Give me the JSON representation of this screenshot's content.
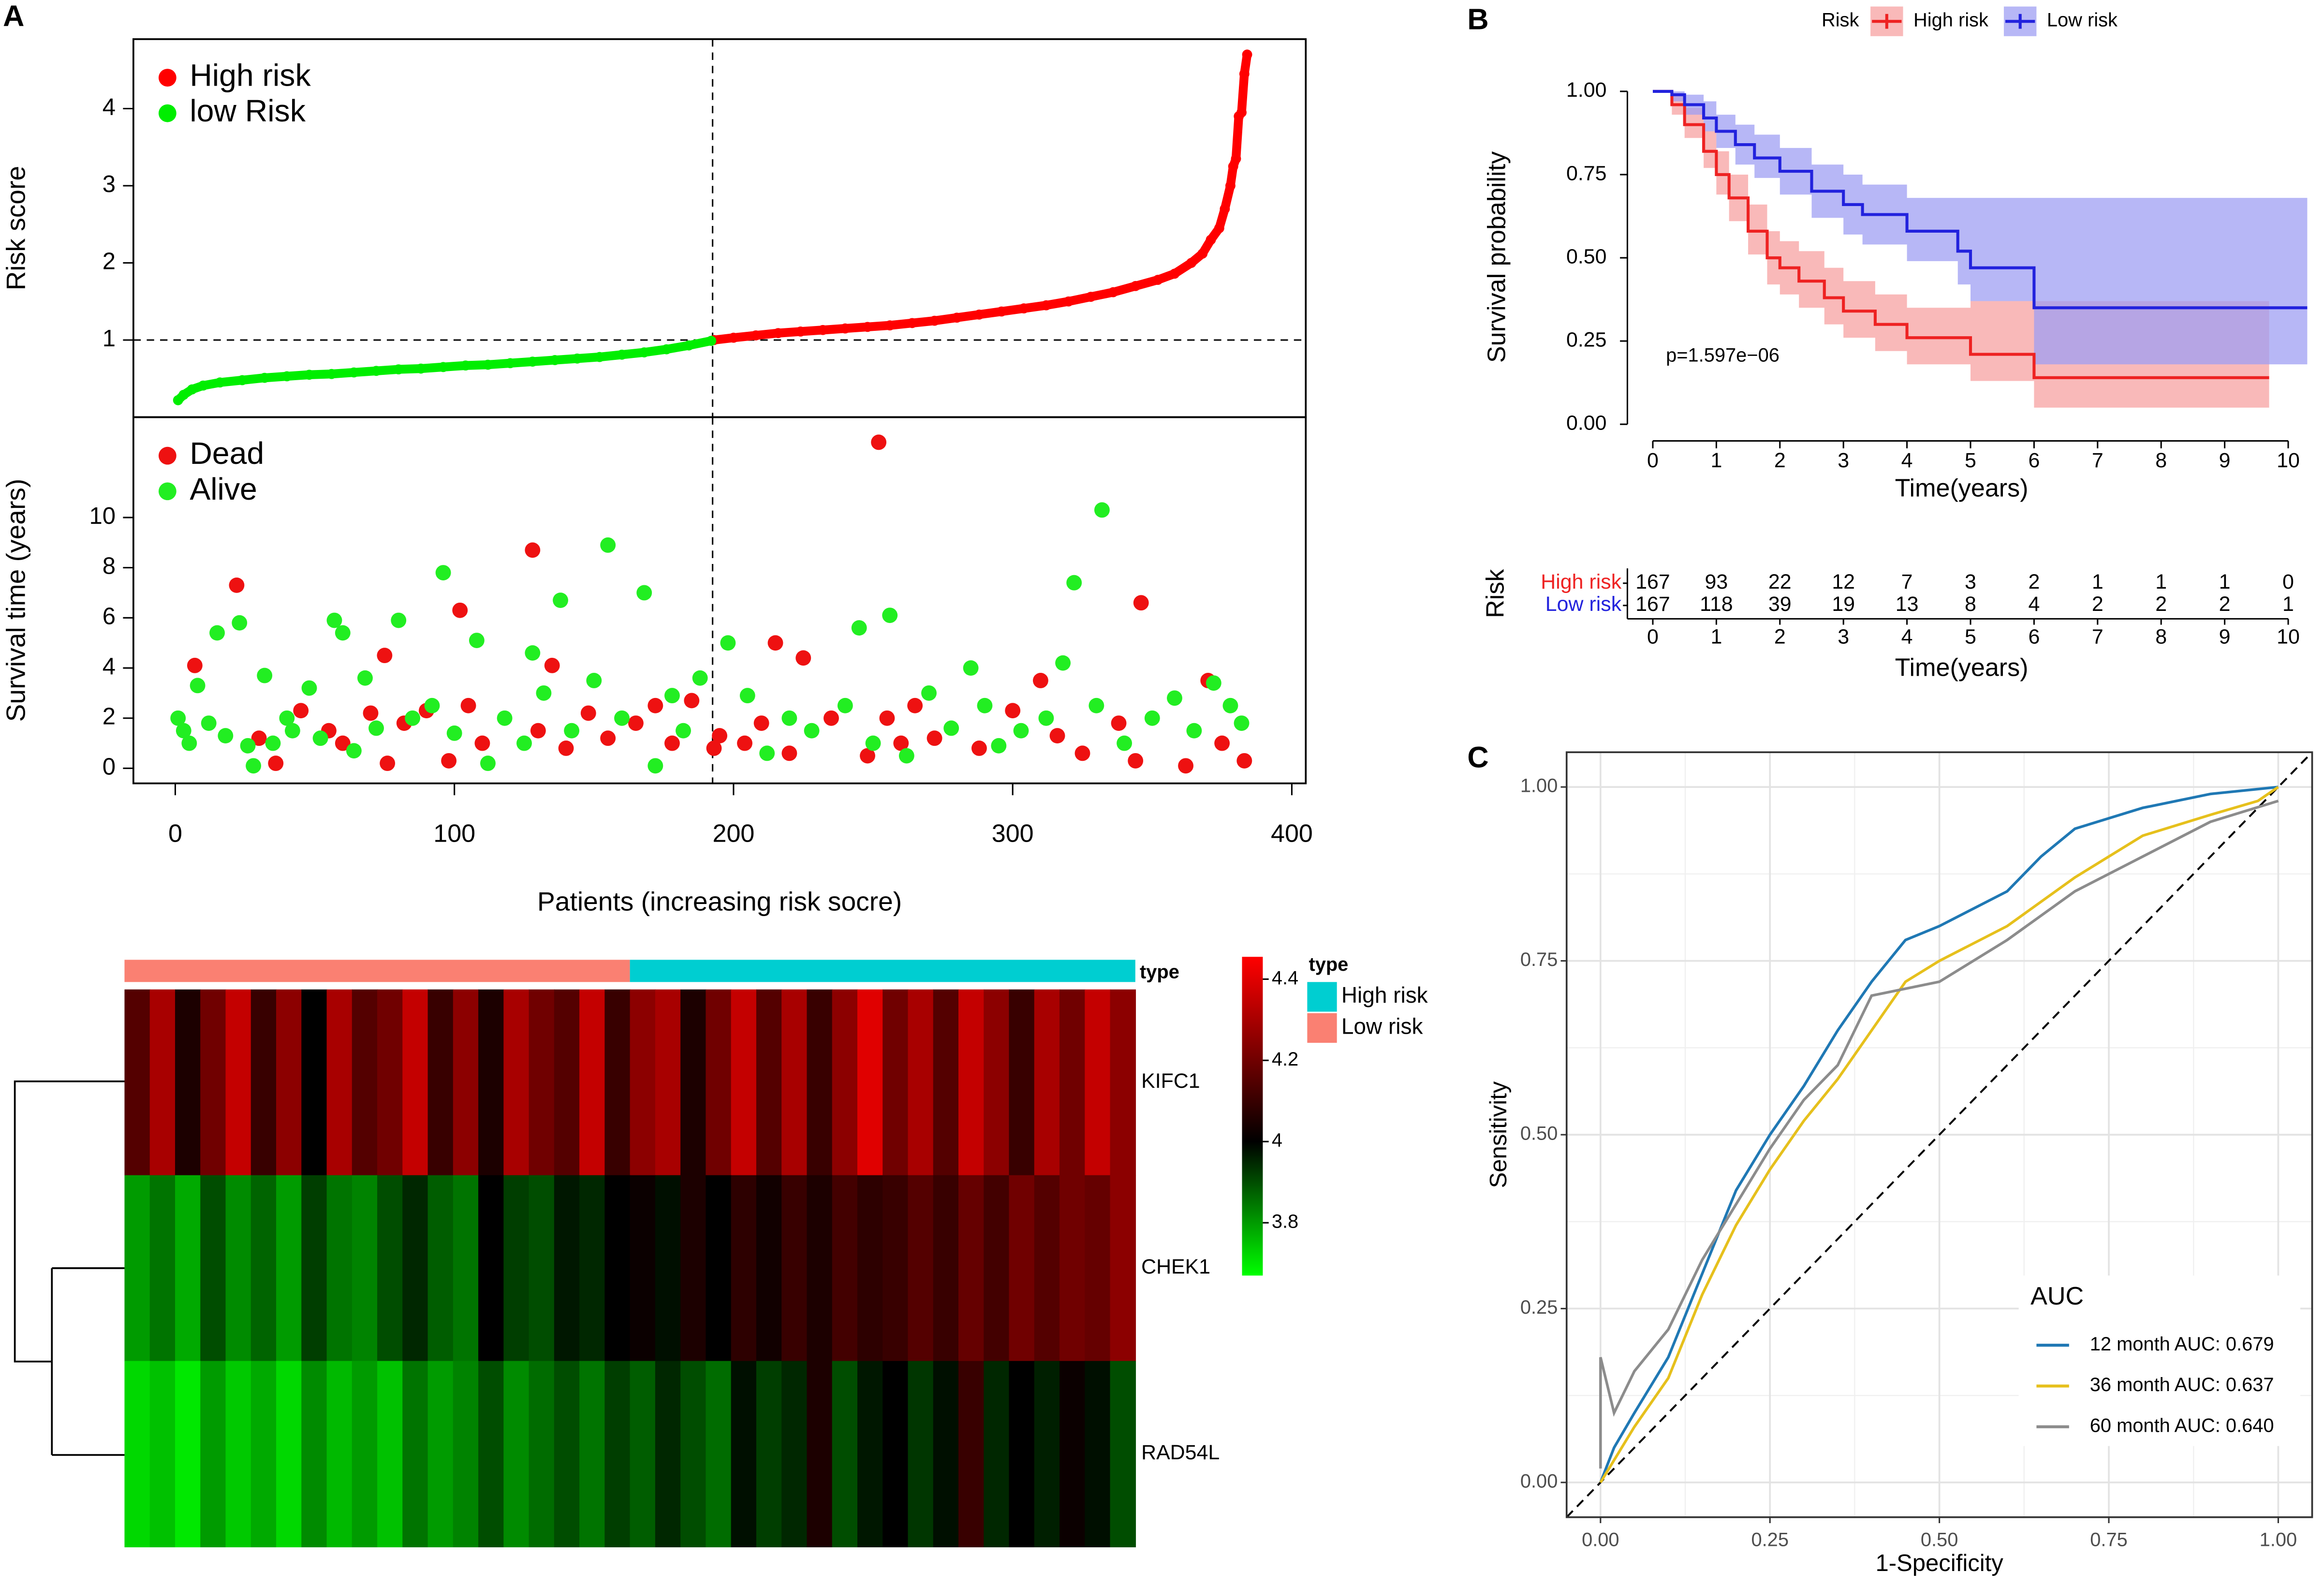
{
  "chart_data": [
    {
      "type": "scatter",
      "label": "A",
      "ylabel": "Risk score",
      "xlim": [
        -15,
        405
      ],
      "ylim": [
        0,
        4.9
      ],
      "yticks": [
        1,
        2,
        3,
        4
      ],
      "cutoff_x": 192.5,
      "cutoff_y": 1,
      "series": [
        {
          "name": "High risk",
          "color": "#ff0000",
          "x": [
            193,
            200,
            208,
            216,
            224,
            232,
            240,
            248,
            256,
            264,
            272,
            280,
            288,
            296,
            304,
            312,
            320,
            328,
            336,
            344,
            352,
            358,
            364,
            368,
            371,
            374,
            376,
            378,
            379,
            380,
            381,
            382,
            383,
            384
          ],
          "values": [
            1.0,
            1.03,
            1.06,
            1.09,
            1.11,
            1.13,
            1.15,
            1.17,
            1.19,
            1.22,
            1.25,
            1.29,
            1.33,
            1.37,
            1.41,
            1.45,
            1.5,
            1.56,
            1.62,
            1.7,
            1.78,
            1.86,
            2.0,
            2.12,
            2.3,
            2.45,
            2.7,
            3.0,
            3.25,
            3.35,
            3.9,
            3.95,
            4.45,
            4.7
          ]
        },
        {
          "name": "low Risk",
          "color": "#00ee00",
          "x": [
            1,
            3,
            6,
            10,
            16,
            24,
            32,
            40,
            48,
            56,
            64,
            72,
            80,
            88,
            96,
            104,
            112,
            120,
            128,
            136,
            144,
            152,
            160,
            168,
            176,
            184,
            192
          ],
          "values": [
            0.22,
            0.29,
            0.36,
            0.41,
            0.45,
            0.48,
            0.51,
            0.53,
            0.55,
            0.56,
            0.58,
            0.6,
            0.62,
            0.63,
            0.65,
            0.67,
            0.68,
            0.7,
            0.72,
            0.74,
            0.76,
            0.78,
            0.81,
            0.84,
            0.88,
            0.93,
            0.99
          ]
        }
      ]
    },
    {
      "type": "scatter",
      "ylabel": "Survival time (years)",
      "xlabel": "Patients (increasing risk socre)",
      "xlim": [
        -15,
        405
      ],
      "ylim": [
        -0.6,
        14
      ],
      "xticks": [
        0,
        100,
        200,
        300,
        400
      ],
      "yticks": [
        0,
        2,
        4,
        6,
        8,
        10
      ],
      "cutoff_x": 192.5,
      "series": [
        {
          "name": "Dead",
          "color": "#ee1111",
          "x": [
            7,
            22,
            30,
            36,
            45,
            55,
            60,
            70,
            75,
            76,
            82,
            90,
            98,
            102,
            105,
            110,
            128,
            130,
            135,
            140,
            148,
            155,
            165,
            172,
            178,
            185,
            193,
            195,
            204,
            210,
            215,
            220,
            225,
            235,
            248,
            252,
            255,
            260,
            265,
            272,
            288,
            300,
            310,
            316,
            325,
            338,
            344,
            346,
            362,
            370,
            375,
            383
          ],
          "values": [
            4.1,
            7.3,
            1.2,
            0.2,
            2.3,
            1.5,
            1.0,
            2.2,
            4.5,
            0.2,
            1.8,
            2.3,
            0.3,
            6.3,
            2.5,
            1.0,
            8.7,
            1.5,
            4.1,
            0.8,
            2.2,
            1.2,
            1.8,
            2.5,
            1.0,
            2.7,
            0.8,
            1.3,
            1.0,
            1.8,
            5.0,
            0.6,
            4.4,
            2.0,
            0.5,
            13.0,
            2.0,
            1.0,
            2.5,
            1.2,
            0.8,
            2.3,
            3.5,
            1.3,
            0.6,
            1.8,
            0.3,
            6.6,
            0.1,
            3.5,
            1.0,
            0.3
          ]
        },
        {
          "name": "Alive",
          "color": "#22ee22",
          "x": [
            1,
            3,
            5,
            8,
            12,
            15,
            18,
            23,
            26,
            28,
            32,
            35,
            40,
            42,
            48,
            52,
            57,
            60,
            64,
            68,
            72,
            80,
            85,
            92,
            96,
            100,
            108,
            112,
            118,
            125,
            128,
            132,
            138,
            142,
            150,
            155,
            160,
            168,
            172,
            178,
            182,
            188,
            198,
            205,
            212,
            220,
            228,
            240,
            245,
            250,
            256,
            262,
            270,
            278,
            285,
            290,
            295,
            303,
            312,
            318,
            322,
            330,
            332,
            340,
            350,
            358,
            365,
            372,
            378,
            382
          ],
          "values": [
            2.0,
            1.5,
            1.0,
            3.3,
            1.8,
            5.4,
            1.3,
            5.8,
            0.9,
            0.1,
            3.7,
            1.0,
            2.0,
            1.5,
            3.2,
            1.2,
            5.9,
            5.4,
            0.7,
            3.6,
            1.6,
            5.9,
            2.0,
            2.5,
            7.8,
            1.4,
            5.1,
            0.2,
            2.0,
            1.0,
            4.6,
            3.0,
            6.7,
            1.5,
            3.5,
            8.9,
            2.0,
            7.0,
            0.1,
            2.9,
            1.5,
            3.6,
            5.0,
            2.9,
            0.6,
            2.0,
            1.5,
            2.5,
            5.6,
            1.0,
            6.1,
            0.5,
            3.0,
            1.6,
            4.0,
            2.5,
            0.9,
            1.5,
            2.0,
            4.2,
            7.4,
            2.5,
            10.3,
            1.0,
            2.0,
            2.8,
            1.5,
            3.4,
            2.5,
            1.8
          ]
        }
      ]
    },
    {
      "type": "heatmap",
      "rows": [
        "KIFC1",
        "CHEK1",
        "RAD54L"
      ],
      "values": [
        [
          4.15,
          4.3,
          4.05,
          4.2,
          4.35,
          4.1,
          4.25,
          4.0,
          4.3,
          4.15,
          4.2,
          4.35,
          4.1,
          4.25,
          4.05,
          4.3,
          4.2,
          4.15,
          4.35,
          4.1,
          4.25,
          4.3,
          4.05,
          4.2,
          4.35,
          4.15,
          4.3,
          4.1,
          4.25,
          4.4,
          4.2,
          4.3,
          4.15,
          4.35,
          4.25,
          4.1,
          4.3,
          4.2,
          4.35,
          4.25
        ],
        [
          3.8,
          3.85,
          3.78,
          3.9,
          3.82,
          3.87,
          3.8,
          3.92,
          3.85,
          3.83,
          3.9,
          3.95,
          3.88,
          3.85,
          4.0,
          3.92,
          3.9,
          3.97,
          3.95,
          4.0,
          4.02,
          3.98,
          4.05,
          4.0,
          4.08,
          4.03,
          4.1,
          4.05,
          4.12,
          4.08,
          4.1,
          4.15,
          4.1,
          4.18,
          4.12,
          4.2,
          4.15,
          4.2,
          4.18,
          4.25
        ],
        [
          3.72,
          3.75,
          3.7,
          3.8,
          3.74,
          3.78,
          3.72,
          3.82,
          3.76,
          3.8,
          3.75,
          3.85,
          3.8,
          3.83,
          3.9,
          3.82,
          3.86,
          3.9,
          3.85,
          3.92,
          3.88,
          3.95,
          3.9,
          3.86,
          3.98,
          3.92,
          3.95,
          4.05,
          3.9,
          3.97,
          4.0,
          3.93,
          3.98,
          4.1,
          3.95,
          4.0,
          3.96,
          4.02,
          3.98,
          3.9
        ]
      ],
      "scale": {
        "lim": [
          3.67,
          4.455
        ],
        "midpoint": 4,
        "low": "#00ff00",
        "mid": "#000000",
        "high": "#ff0000"
      },
      "colorbar_ticks": [
        3.8,
        4,
        {
          "value": 4.2,
          "label": "4.2"
        },
        4.4
      ],
      "annotation": {
        "title": "type",
        "legend": [
          {
            "name": "High risk",
            "color": "#00ced1"
          },
          {
            "name": "Low risk",
            "color": "#fa8072"
          }
        ],
        "groups": [
          {
            "legend": 1,
            "columns": 20
          },
          {
            "legend": 0,
            "columns": 20
          }
        ]
      }
    },
    {
      "type": "km",
      "label": "B",
      "legend_title": "Risk",
      "ylabel": "Survival probability",
      "xlabel": "Time(years)",
      "annotation": "p=1.597e−06",
      "xlim": [
        -0.4,
        10.4
      ],
      "ylim": [
        -0.05,
        1.05
      ],
      "xticks": [
        0,
        1,
        2,
        3,
        4,
        5,
        6,
        7,
        8,
        9,
        10
      ],
      "yticks": [
        {
          "value": 0,
          "label": "0.00"
        },
        0.25,
        {
          "value": 0.5,
          "label": "0.50"
        },
        0.75,
        {
          "value": 1,
          "label": "1.00"
        }
      ],
      "series": [
        {
          "name": "High risk",
          "color": "#ee2222",
          "band_color": "#f7a1a1",
          "x": [
            0,
            0.3,
            0.5,
            0.8,
            1,
            1.2,
            1.5,
            1.8,
            2,
            2.3,
            2.7,
            3,
            3.5,
            4,
            5,
            6,
            9.7
          ],
          "values": [
            1,
            0.96,
            0.9,
            0.82,
            0.75,
            0.68,
            0.58,
            0.5,
            0.47,
            0.43,
            0.38,
            0.34,
            0.3,
            0.26,
            0.21,
            0.14,
            0.14
          ],
          "lower": [
            1,
            0.93,
            0.86,
            0.77,
            0.69,
            0.61,
            0.51,
            0.42,
            0.39,
            0.35,
            0.3,
            0.26,
            0.22,
            0.18,
            0.13,
            0.05,
            0.05
          ],
          "upper": [
            1,
            0.99,
            0.95,
            0.88,
            0.82,
            0.75,
            0.66,
            0.58,
            0.55,
            0.52,
            0.47,
            0.43,
            0.39,
            0.35,
            0.37,
            0.37,
            0.37
          ]
        },
        {
          "name": "Low risk",
          "color": "#2222dd",
          "band_color": "#9f9ff3",
          "x": [
            0,
            0.3,
            0.5,
            0.8,
            1,
            1.3,
            1.6,
            2,
            2.5,
            3,
            3.3,
            4,
            4.8,
            5,
            6,
            10.3
          ],
          "values": [
            1,
            0.99,
            0.96,
            0.92,
            0.88,
            0.84,
            0.8,
            0.76,
            0.7,
            0.66,
            0.63,
            0.58,
            0.52,
            0.47,
            0.35,
            0.35
          ],
          "lower": [
            1,
            0.97,
            0.93,
            0.88,
            0.83,
            0.78,
            0.74,
            0.69,
            0.62,
            0.57,
            0.54,
            0.49,
            0.42,
            0.37,
            0.18,
            0.18
          ],
          "upper": [
            1,
            1,
            0.99,
            0.97,
            0.93,
            0.9,
            0.87,
            0.83,
            0.78,
            0.75,
            0.72,
            0.68,
            0.68,
            0.68,
            0.68,
            0.68
          ]
        }
      ],
      "risk_table": {
        "title": "Risk",
        "xlabel": "Time(years)",
        "x": [
          0,
          1,
          2,
          3,
          4,
          5,
          6,
          7,
          8,
          9,
          10
        ],
        "rows": [
          {
            "name": "High risk",
            "color": "#ee2222",
            "values": [
              167,
              93,
              22,
              12,
              7,
              3,
              2,
              1,
              1,
              1,
              0
            ]
          },
          {
            "name": "Low risk",
            "color": "#2222dd",
            "values": [
              167,
              118,
              39,
              19,
              13,
              8,
              4,
              2,
              2,
              2,
              1
            ]
          }
        ]
      }
    },
    {
      "type": "roc",
      "label": "C",
      "xlabel": "1-Specificity",
      "ylabel": "Sensitivity",
      "legend_title": "AUC",
      "grid": true,
      "xlim": [
        -0.05,
        1.05
      ],
      "ylim": [
        -0.05,
        1.05
      ],
      "xticks": [
        {
          "value": 0,
          "label": "0.00"
        },
        0.25,
        {
          "value": 0.5,
          "label": "0.50"
        },
        0.75,
        {
          "value": 1,
          "label": "1.00"
        }
      ],
      "yticks": [
        {
          "value": 0,
          "label": "0.00"
        },
        0.25,
        {
          "value": 0.5,
          "label": "0.50"
        },
        0.75,
        {
          "value": 1,
          "label": "1.00"
        }
      ],
      "series": [
        {
          "name": "12 month AUC: 0.679",
          "color": "#1f78b4",
          "x": [
            0,
            0.02,
            0.05,
            0.1,
            0.15,
            0.2,
            0.25,
            0.3,
            0.35,
            0.4,
            0.45,
            0.5,
            0.6,
            0.65,
            0.7,
            0.8,
            0.9,
            1
          ],
          "values": [
            0,
            0.05,
            0.1,
            0.18,
            0.3,
            0.42,
            0.5,
            0.57,
            0.65,
            0.72,
            0.78,
            0.8,
            0.85,
            0.9,
            0.94,
            0.97,
            0.99,
            1
          ]
        },
        {
          "name": "36 month AUC: 0.637",
          "color": "#e6c01c",
          "x": [
            0,
            0.05,
            0.1,
            0.15,
            0.2,
            0.25,
            0.3,
            0.35,
            0.4,
            0.45,
            0.5,
            0.6,
            0.7,
            0.8,
            0.9,
            0.97,
            1
          ],
          "values": [
            0,
            0.08,
            0.15,
            0.27,
            0.37,
            0.45,
            0.52,
            0.58,
            0.65,
            0.72,
            0.75,
            0.8,
            0.87,
            0.93,
            0.96,
            0.98,
            1
          ]
        },
        {
          "name": "60 month AUC: 0.640",
          "color": "#8c8c8c",
          "x": [
            0,
            0,
            0.02,
            0.05,
            0.1,
            0.15,
            0.2,
            0.25,
            0.3,
            0.35,
            0.4,
            0.5,
            0.6,
            0.7,
            0.8,
            0.9,
            1
          ],
          "values": [
            0.02,
            0.18,
            0.1,
            0.16,
            0.22,
            0.32,
            0.4,
            0.48,
            0.55,
            0.6,
            0.7,
            0.72,
            0.78,
            0.85,
            0.9,
            0.95,
            0.98
          ]
        }
      ]
    }
  ]
}
